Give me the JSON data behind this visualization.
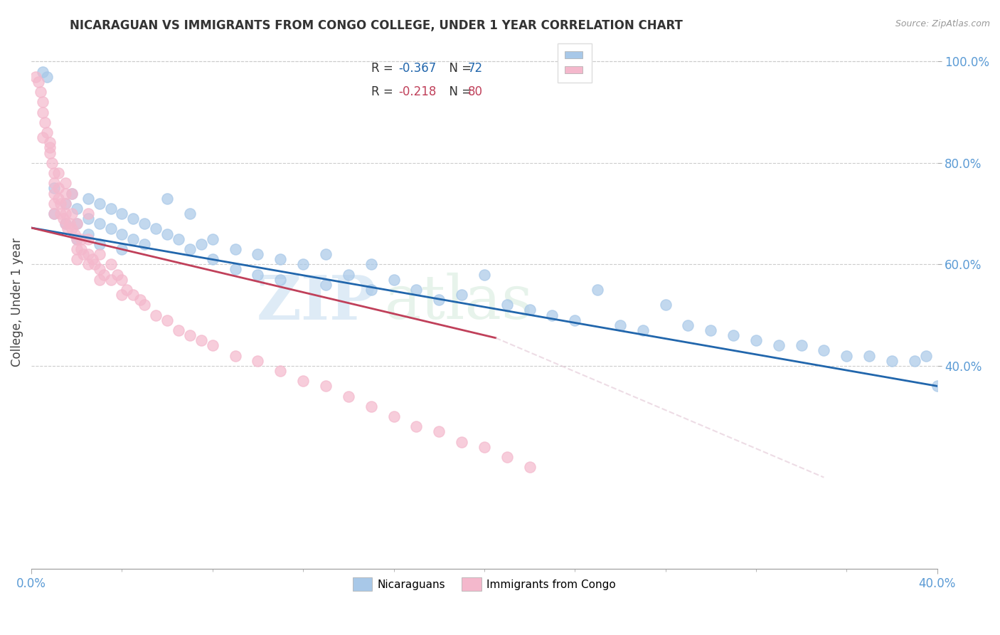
{
  "title": "NICARAGUAN VS IMMIGRANTS FROM CONGO COLLEGE, UNDER 1 YEAR CORRELATION CHART",
  "source_text": "Source: ZipAtlas.com",
  "ylabel": "College, Under 1 year",
  "legend_r1": "-0.367",
  "legend_n1": "72",
  "legend_r2": "-0.218",
  "legend_n2": "80",
  "color_blue": "#a8c8e8",
  "color_pink": "#f4b8cc",
  "color_blue_line": "#2166ac",
  "color_pink_line": "#c0405a",
  "color_blue_text": "#2166ac",
  "color_pink_text": "#c0405a",
  "watermark_zip": "ZIP",
  "watermark_atlas": "atlas",
  "xlim": [
    0.0,
    0.4
  ],
  "ylim": [
    0.0,
    1.05
  ],
  "right_ytick_vals": [
    0.4,
    0.6,
    0.8,
    1.0
  ],
  "figsize": [
    14.06,
    8.92
  ],
  "dpi": 100,
  "blue_x": [
    0.005,
    0.007,
    0.01,
    0.01,
    0.015,
    0.015,
    0.018,
    0.02,
    0.02,
    0.02,
    0.025,
    0.025,
    0.025,
    0.03,
    0.03,
    0.03,
    0.035,
    0.035,
    0.04,
    0.04,
    0.04,
    0.045,
    0.045,
    0.05,
    0.05,
    0.055,
    0.06,
    0.06,
    0.065,
    0.07,
    0.07,
    0.075,
    0.08,
    0.08,
    0.09,
    0.09,
    0.1,
    0.1,
    0.11,
    0.11,
    0.12,
    0.13,
    0.13,
    0.14,
    0.15,
    0.15,
    0.16,
    0.17,
    0.18,
    0.19,
    0.2,
    0.21,
    0.22,
    0.23,
    0.24,
    0.25,
    0.26,
    0.27,
    0.28,
    0.29,
    0.3,
    0.31,
    0.32,
    0.33,
    0.34,
    0.35,
    0.36,
    0.37,
    0.38,
    0.39,
    0.4,
    0.395
  ],
  "blue_y": [
    0.98,
    0.97,
    0.7,
    0.75,
    0.72,
    0.68,
    0.74,
    0.71,
    0.68,
    0.65,
    0.73,
    0.69,
    0.66,
    0.72,
    0.68,
    0.64,
    0.71,
    0.67,
    0.7,
    0.66,
    0.63,
    0.69,
    0.65,
    0.68,
    0.64,
    0.67,
    0.73,
    0.66,
    0.65,
    0.7,
    0.63,
    0.64,
    0.65,
    0.61,
    0.63,
    0.59,
    0.62,
    0.58,
    0.61,
    0.57,
    0.6,
    0.62,
    0.56,
    0.58,
    0.6,
    0.55,
    0.57,
    0.55,
    0.53,
    0.54,
    0.58,
    0.52,
    0.51,
    0.5,
    0.49,
    0.55,
    0.48,
    0.47,
    0.52,
    0.48,
    0.47,
    0.46,
    0.45,
    0.44,
    0.44,
    0.43,
    0.42,
    0.42,
    0.41,
    0.41,
    0.36,
    0.42
  ],
  "pink_x": [
    0.002,
    0.003,
    0.004,
    0.005,
    0.005,
    0.006,
    0.007,
    0.008,
    0.008,
    0.009,
    0.01,
    0.01,
    0.01,
    0.01,
    0.01,
    0.012,
    0.012,
    0.013,
    0.013,
    0.014,
    0.015,
    0.015,
    0.015,
    0.015,
    0.016,
    0.017,
    0.018,
    0.018,
    0.019,
    0.02,
    0.02,
    0.02,
    0.02,
    0.022,
    0.022,
    0.023,
    0.025,
    0.025,
    0.025,
    0.027,
    0.028,
    0.03,
    0.03,
    0.03,
    0.032,
    0.035,
    0.035,
    0.038,
    0.04,
    0.04,
    0.042,
    0.045,
    0.048,
    0.05,
    0.055,
    0.06,
    0.065,
    0.07,
    0.075,
    0.08,
    0.09,
    0.1,
    0.11,
    0.12,
    0.13,
    0.14,
    0.15,
    0.16,
    0.17,
    0.18,
    0.19,
    0.2,
    0.21,
    0.22,
    0.005,
    0.008,
    0.012,
    0.015,
    0.018,
    0.025
  ],
  "pink_y": [
    0.97,
    0.96,
    0.94,
    0.92,
    0.9,
    0.88,
    0.86,
    0.84,
    0.82,
    0.8,
    0.78,
    0.76,
    0.74,
    0.72,
    0.7,
    0.75,
    0.73,
    0.72,
    0.7,
    0.69,
    0.74,
    0.72,
    0.7,
    0.68,
    0.67,
    0.68,
    0.7,
    0.67,
    0.66,
    0.68,
    0.65,
    0.63,
    0.61,
    0.65,
    0.63,
    0.62,
    0.65,
    0.62,
    0.6,
    0.61,
    0.6,
    0.62,
    0.59,
    0.57,
    0.58,
    0.6,
    0.57,
    0.58,
    0.57,
    0.54,
    0.55,
    0.54,
    0.53,
    0.52,
    0.5,
    0.49,
    0.47,
    0.46,
    0.45,
    0.44,
    0.42,
    0.41,
    0.39,
    0.37,
    0.36,
    0.34,
    0.32,
    0.3,
    0.28,
    0.27,
    0.25,
    0.24,
    0.22,
    0.2,
    0.85,
    0.83,
    0.78,
    0.76,
    0.74,
    0.7
  ]
}
